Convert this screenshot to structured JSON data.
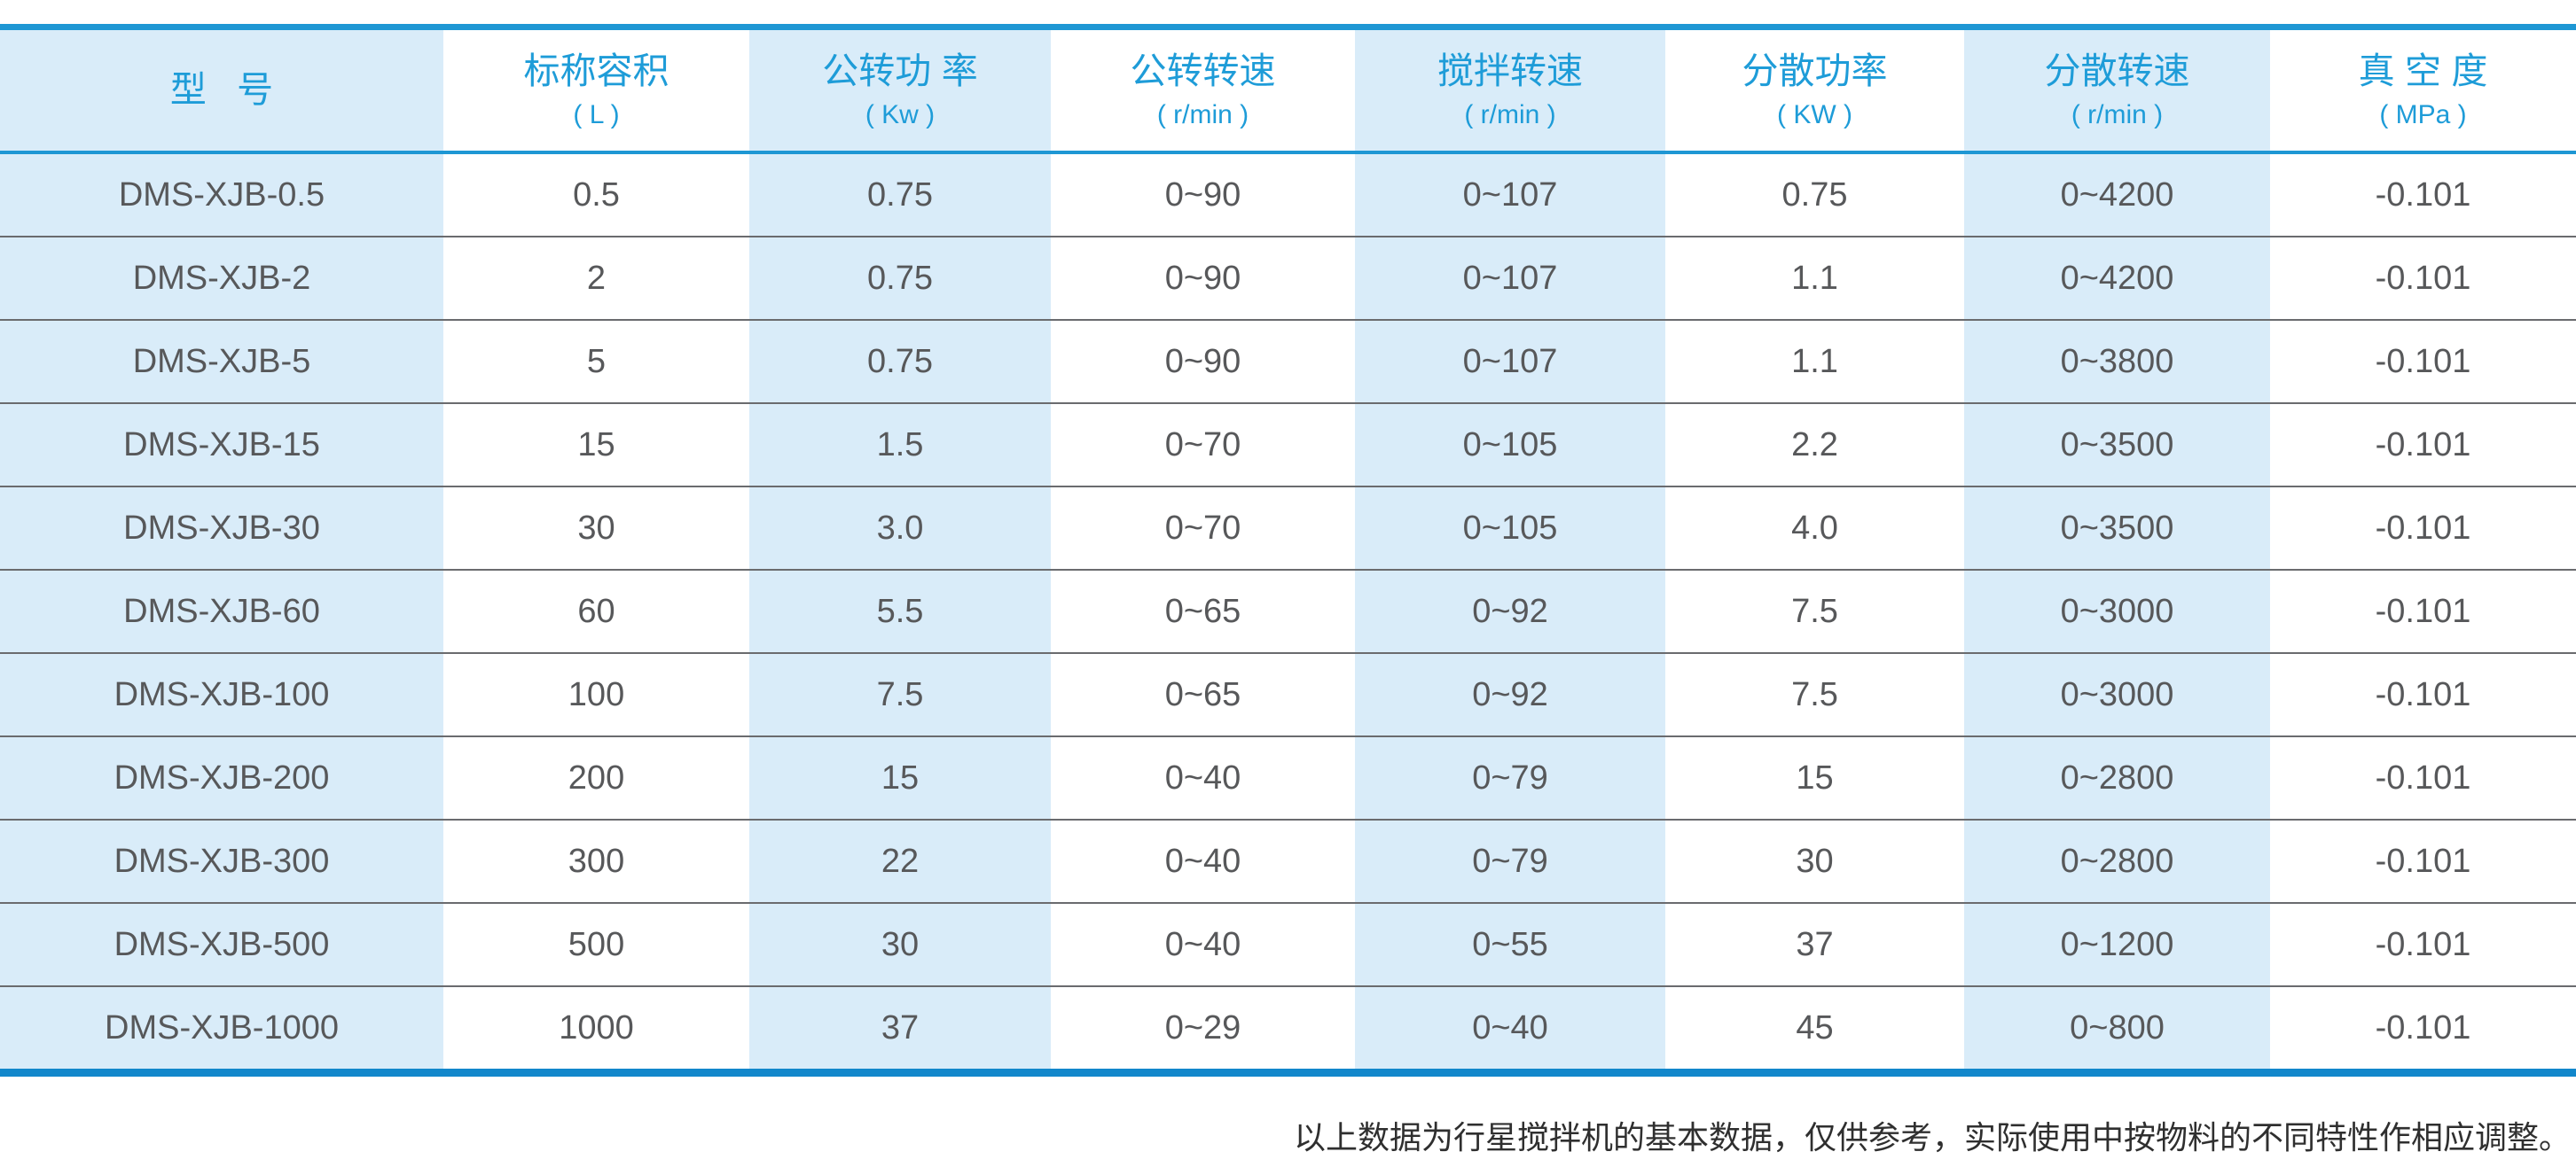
{
  "colors": {
    "accent_blue": "#1e9cd8",
    "band_light_blue": "#d9ecf9",
    "top_rule_blue": "#1e97d4",
    "bottom_rule_blue": "#1287cb",
    "body_text": "#57585a",
    "row_separator": "#6a6b6e"
  },
  "table": {
    "columns": [
      {
        "label": "型   号"
      },
      {
        "label": "标称容积",
        "unit": "( L )"
      },
      {
        "label": "公转功 率",
        "unit": "( Kw )"
      },
      {
        "label": "公转转速",
        "unit": "( r/min )"
      },
      {
        "label": "搅拌转速",
        "unit": "( r/min )"
      },
      {
        "label": "分散功率",
        "unit": "( KW )"
      },
      {
        "label": "分散转速",
        "unit": "( r/min )"
      },
      {
        "label": "真 空 度",
        "unit": "( MPa )"
      }
    ],
    "rows": [
      [
        "DMS-XJB-0.5",
        "0.5",
        "0.75",
        "0~90",
        "0~107",
        "0.75",
        "0~4200",
        "-0.101"
      ],
      [
        "DMS-XJB-2",
        "2",
        "0.75",
        "0~90",
        "0~107",
        "1.1",
        "0~4200",
        "-0.101"
      ],
      [
        "DMS-XJB-5",
        "5",
        "0.75",
        "0~90",
        "0~107",
        "1.1",
        "0~3800",
        "-0.101"
      ],
      [
        "DMS-XJB-15",
        "15",
        "1.5",
        "0~70",
        "0~105",
        "2.2",
        "0~3500",
        "-0.101"
      ],
      [
        "DMS-XJB-30",
        "30",
        "3.0",
        "0~70",
        "0~105",
        "4.0",
        "0~3500",
        "-0.101"
      ],
      [
        "DMS-XJB-60",
        "60",
        "5.5",
        "0~65",
        "0~92",
        "7.5",
        "0~3000",
        "-0.101"
      ],
      [
        "DMS-XJB-100",
        "100",
        "7.5",
        "0~65",
        "0~92",
        "7.5",
        "0~3000",
        "-0.101"
      ],
      [
        "DMS-XJB-200",
        "200",
        "15",
        "0~40",
        "0~79",
        "15",
        "0~2800",
        "-0.101"
      ],
      [
        "DMS-XJB-300",
        "300",
        "22",
        "0~40",
        "0~79",
        "30",
        "0~2800",
        "-0.101"
      ],
      [
        "DMS-XJB-500",
        "500",
        "30",
        "0~40",
        "0~55",
        "37",
        "0~1200",
        "-0.101"
      ],
      [
        "DMS-XJB-1000",
        "1000",
        "37",
        "0~29",
        "0~40",
        "45",
        "0~800",
        "-0.101"
      ]
    ]
  },
  "footer_note": "以上数据为行星搅拌机的基本数据，仅供参考，实际使用中按物料的不同特性作相应调整。"
}
